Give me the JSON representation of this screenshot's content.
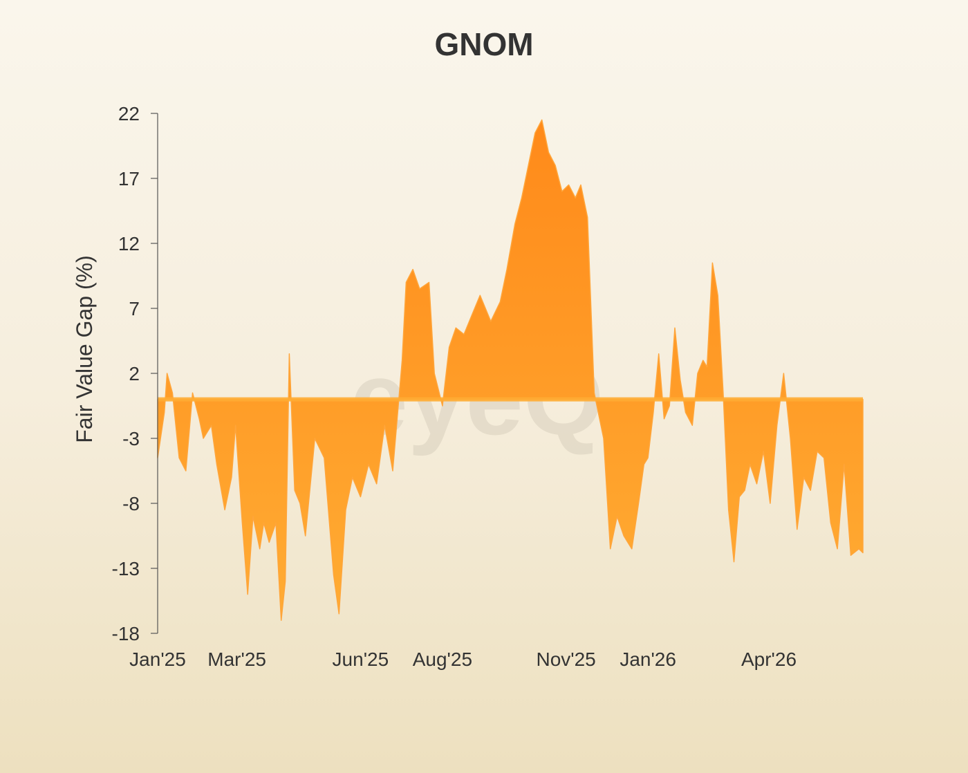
{
  "chart_data": {
    "type": "area",
    "title": "GNOM",
    "xlabel": "",
    "ylabel": "Fair Value Gap (%)",
    "ylim": [
      -18,
      22
    ],
    "yticks": [
      22,
      17,
      12,
      7,
      2,
      -3,
      -8,
      -13,
      -18
    ],
    "xlim": [
      "2025-01-01",
      "2026-06-10"
    ],
    "xticks": [
      {
        "date": "2025-01-01",
        "label": "Jan'25"
      },
      {
        "date": "2025-03-01",
        "label": "Mar'25"
      },
      {
        "date": "2025-06-01",
        "label": "Jun'25"
      },
      {
        "date": "2025-08-01",
        "label": "Aug'25"
      },
      {
        "date": "2025-11-01",
        "label": "Nov'25"
      },
      {
        "date": "2026-01-01",
        "label": "Jan'26"
      },
      {
        "date": "2026-04-01",
        "label": "Apr'26"
      }
    ],
    "baseline": 0,
    "grid": false,
    "legend": "none",
    "colors": {
      "top": "#ff8a1a",
      "bottom": "#ffac33",
      "axis": "#555555"
    },
    "watermark": "eyeQ",
    "series": [
      {
        "x": [
          "2025-01-01",
          "2025-01-06",
          "2025-01-08",
          "2025-01-12",
          "2025-01-17",
          "2025-01-22",
          "2025-01-27",
          "2025-02-01",
          "2025-02-04",
          "2025-02-10",
          "2025-02-14",
          "2025-02-20",
          "2025-02-25",
          "2025-02-28",
          "2025-03-05",
          "2025-03-09",
          "2025-03-13",
          "2025-03-18",
          "2025-03-21",
          "2025-03-25",
          "2025-03-30",
          "2025-04-03",
          "2025-04-06",
          "2025-04-09",
          "2025-04-13",
          "2025-04-17",
          "2025-04-21",
          "2025-04-28",
          "2025-05-05",
          "2025-05-12",
          "2025-05-16",
          "2025-05-21",
          "2025-05-26",
          "2025-06-01",
          "2025-06-07",
          "2025-06-13",
          "2025-06-19",
          "2025-06-25",
          "2025-07-02",
          "2025-07-05",
          "2025-07-10",
          "2025-07-15",
          "2025-07-22",
          "2025-07-26",
          "2025-08-01",
          "2025-08-06",
          "2025-08-11",
          "2025-08-17",
          "2025-08-23",
          "2025-08-29",
          "2025-09-06",
          "2025-09-13",
          "2025-09-18",
          "2025-09-24",
          "2025-09-29",
          "2025-10-04",
          "2025-10-09",
          "2025-10-14",
          "2025-10-19",
          "2025-10-24",
          "2025-10-29",
          "2025-11-03",
          "2025-11-08",
          "2025-11-12",
          "2025-11-17",
          "2025-11-22",
          "2025-11-29",
          "2025-12-04",
          "2025-12-09",
          "2025-12-14",
          "2025-12-20",
          "2025-12-25",
          "2025-12-29",
          "2026-01-01",
          "2026-01-05",
          "2026-01-09",
          "2026-01-13",
          "2026-01-17",
          "2026-01-21",
          "2026-01-25",
          "2026-01-29",
          "2026-02-03",
          "2026-02-07",
          "2026-02-11",
          "2026-02-14",
          "2026-02-18",
          "2026-02-22",
          "2026-02-26",
          "2026-03-02",
          "2026-03-06",
          "2026-03-10",
          "2026-03-14",
          "2026-03-18",
          "2026-03-23",
          "2026-03-28",
          "2026-04-02",
          "2026-04-07",
          "2026-04-12",
          "2026-04-17",
          "2026-04-22",
          "2026-04-27",
          "2026-05-02",
          "2026-05-07",
          "2026-05-12",
          "2026-05-17",
          "2026-05-22",
          "2026-05-27",
          "2026-06-01",
          "2026-06-07",
          "2026-06-10"
        ],
        "y": [
          -4.5,
          -1.0,
          2.0,
          0.5,
          -4.5,
          -5.5,
          0.5,
          -1.5,
          -3.0,
          -2.0,
          -5.0,
          -8.5,
          -6.0,
          -2.0,
          -9.5,
          -15.0,
          -9.0,
          -11.5,
          -9.5,
          -11.0,
          -9.5,
          -17.0,
          -14.0,
          3.5,
          -7.0,
          -8.0,
          -10.5,
          -3.0,
          -4.5,
          -13.5,
          -16.5,
          -8.5,
          -6.0,
          -7.5,
          -5.0,
          -6.5,
          -2.0,
          -5.5,
          3.0,
          9.0,
          10.0,
          8.5,
          9.0,
          2.0,
          -0.5,
          4.0,
          5.5,
          5.0,
          6.5,
          8.0,
          6.0,
          7.5,
          10.0,
          13.5,
          15.5,
          18.0,
          20.5,
          21.5,
          19.0,
          18.0,
          16.0,
          16.5,
          15.5,
          16.5,
          14.0,
          0.5,
          -3.0,
          -11.5,
          -9.0,
          -10.5,
          -11.5,
          -8.0,
          -5.0,
          -4.5,
          -1.0,
          3.5,
          -1.5,
          -0.5,
          5.5,
          1.5,
          -1.0,
          -2.0,
          2.0,
          3.0,
          2.5,
          10.5,
          8.0,
          0.5,
          -8.5,
          -12.5,
          -7.5,
          -7.0,
          -5.0,
          -6.5,
          -4.0,
          -8.0,
          -2.0,
          2.0,
          -3.0,
          -10.0,
          -6.0,
          -7.0,
          -4.0,
          -4.5,
          -9.5,
          -11.5,
          -5.0,
          -12.0,
          -11.5,
          -11.8
        ]
      }
    ]
  }
}
